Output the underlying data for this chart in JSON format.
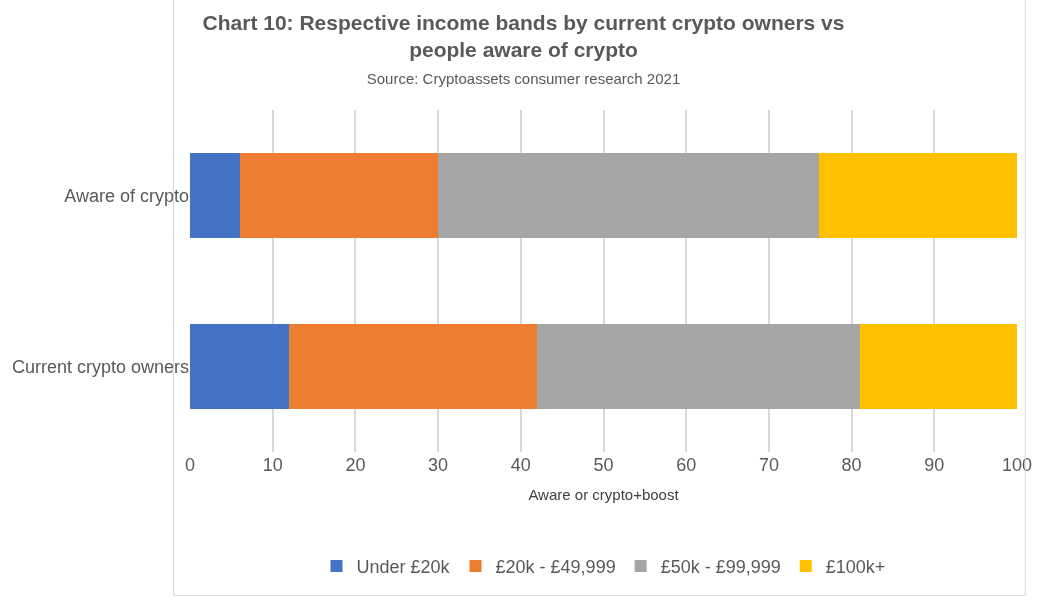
{
  "chart_data": {
    "type": "bar",
    "orientation": "horizontal",
    "stacked": true,
    "title": "Chart 10: Respective income bands by current crypto owners vs people aware of crypto",
    "subtitle": "Source: Cryptoassets consumer research 2021",
    "xlabel": "Aware or crypto+boost",
    "categories": [
      "Aware of crypto",
      "Current crypto owners"
    ],
    "series": [
      {
        "name": "Under £20k",
        "color": "#4472c4",
        "values": [
          6,
          12
        ]
      },
      {
        "name": "£20k - £49,999",
        "color": "#ed7d31",
        "values": [
          24,
          30
        ]
      },
      {
        "name": "£50k - £99,999",
        "color": "#a5a5a5",
        "values": [
          46,
          39
        ]
      },
      {
        "name": "£100k+",
        "color": "#ffc000",
        "values": [
          24,
          19
        ]
      }
    ],
    "xlim": [
      0,
      100
    ],
    "xticks": [
      0,
      10,
      20,
      30,
      40,
      50,
      60,
      70,
      80,
      90,
      100
    ],
    "grid": "x",
    "legend": "bottom"
  }
}
